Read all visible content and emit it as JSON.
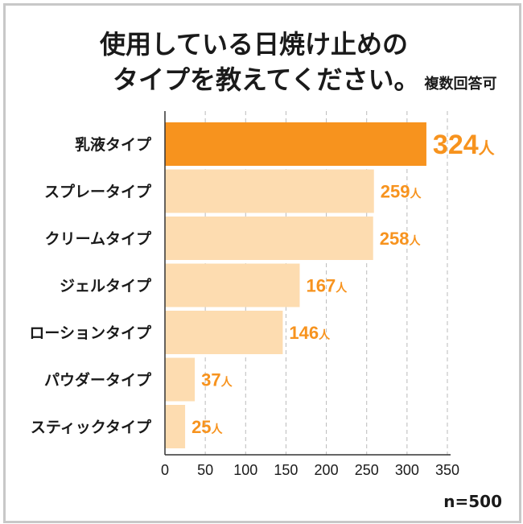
{
  "title_line1": "使用している日焼け止めの",
  "title_line2": "タイプを教えてください。",
  "title_note": "複数回答可",
  "sample_size": "n=500",
  "chart_data": {
    "type": "bar",
    "orientation": "horizontal",
    "categories": [
      "乳液タイプ",
      "スプレータイプ",
      "クリームタイプ",
      "ジェルタイプ",
      "ローションタイプ",
      "パウダータイプ",
      "スティックタイプ"
    ],
    "values": [
      324,
      259,
      258,
      167,
      146,
      37,
      25
    ],
    "value_labels": [
      "324",
      "259",
      "258",
      "167",
      "146",
      "37",
      "25"
    ],
    "unit": "人",
    "xlim": [
      0,
      350
    ],
    "xticks": [
      "0",
      "50",
      "100",
      "150",
      "200",
      "250",
      "300",
      "350"
    ],
    "grid": "vertical dashed",
    "colors": {
      "highlight": "#f7931e",
      "normal": "#fddcb0",
      "label": "#f7931e",
      "text": "#1a1a1a",
      "grid": "#bbbbbb"
    }
  }
}
